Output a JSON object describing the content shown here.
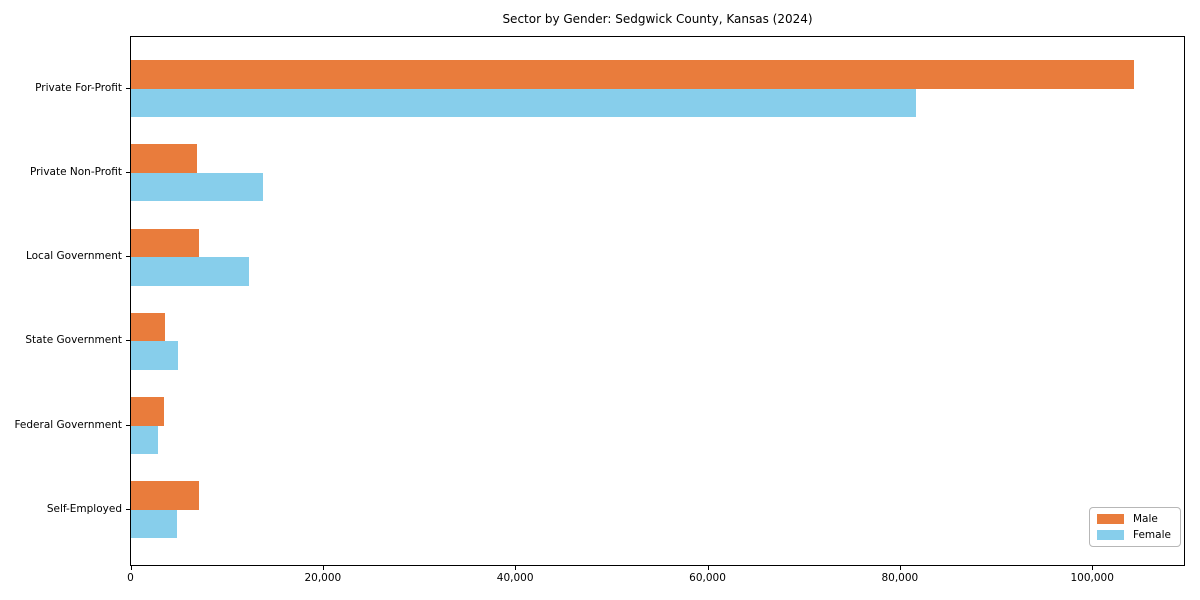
{
  "chart_data": {
    "type": "bar",
    "orientation": "horizontal",
    "title": "Sector by Gender: Sedgwick County, Kansas (2024)",
    "categories": [
      "Private For-Profit",
      "Private Non-Profit",
      "Local Government",
      "State Government",
      "Federal Government",
      "Self-Employed"
    ],
    "series": [
      {
        "name": "Male",
        "color": "#e97c3c",
        "values": [
          104300,
          6900,
          7100,
          3500,
          3400,
          7100
        ]
      },
      {
        "name": "Female",
        "color": "#87ceeb",
        "values": [
          81600,
          13700,
          12300,
          4900,
          2800,
          4800
        ]
      }
    ],
    "xlabel": "",
    "ylabel": "",
    "xlim": [
      0,
      109700
    ],
    "xticks": [
      0,
      20000,
      40000,
      60000,
      80000,
      100000
    ],
    "xtick_labels": [
      "0",
      "20,000",
      "40,000",
      "60,000",
      "80,000",
      "100,000"
    ],
    "grid": false,
    "legend": {
      "position": "lower right",
      "entries": [
        "Male",
        "Female"
      ]
    }
  }
}
